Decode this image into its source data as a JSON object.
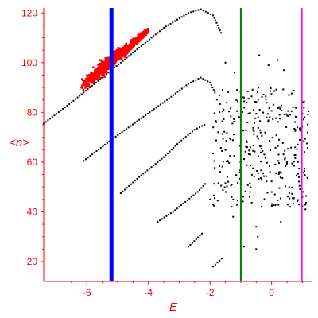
{
  "chart_data": {
    "type": "scatter",
    "title": "",
    "xlabel": "E",
    "ylabel": "<n>",
    "xlim": [
      -7.4,
      1.3
    ],
    "ylim": [
      12,
      122
    ],
    "x_ticks": [
      -6,
      -4,
      -2,
      0
    ],
    "y_ticks": [
      20,
      40,
      60,
      80,
      100,
      120
    ],
    "axis_color": "#ff0000",
    "grid": false,
    "highlight": {
      "color": "#ff0000",
      "trend": {
        "x0": -6.8,
        "y0": 84.0,
        "x1": -4.0,
        "y1": 113.0,
        "scatter": 1.4
      }
    },
    "ridges": [
      {
        "color": "#000000",
        "points": [
          [
            -7.4,
            75.5
          ],
          [
            -6.5,
            84.0
          ],
          [
            -5.5,
            94.0
          ],
          [
            -4.5,
            104.0
          ],
          [
            -3.5,
            114.0
          ],
          [
            -2.7,
            120.0
          ],
          [
            -2.3,
            121.5
          ],
          [
            -1.9,
            119.0
          ],
          [
            -1.6,
            111.0
          ]
        ]
      },
      {
        "color": "#000000",
        "points": [
          [
            -6.1,
            60.5
          ],
          [
            -5.2,
            69.0
          ],
          [
            -4.3,
            77.0
          ],
          [
            -3.4,
            85.0
          ],
          [
            -2.7,
            91.5
          ],
          [
            -2.3,
            94.0
          ],
          [
            -2.0,
            92.0
          ],
          [
            -1.8,
            87.0
          ]
        ]
      },
      {
        "color": "#000000",
        "points": [
          [
            -4.9,
            47.5
          ],
          [
            -4.3,
            54.0
          ],
          [
            -3.5,
            62.0
          ],
          [
            -3.0,
            68.0
          ],
          [
            -2.5,
            73.0
          ],
          [
            -2.1,
            75.5
          ]
        ]
      },
      {
        "color": "#000000",
        "points": [
          [
            -3.7,
            36.0
          ],
          [
            -3.2,
            40.0
          ],
          [
            -2.8,
            44.0
          ],
          [
            -2.4,
            48.0
          ],
          [
            -2.1,
            52.0
          ]
        ]
      },
      {
        "color": "#000000",
        "points": [
          [
            -2.7,
            26.0
          ],
          [
            -2.45,
            29.0
          ],
          [
            -2.2,
            32.0
          ]
        ]
      },
      {
        "color": "#000000",
        "points": [
          [
            -1.9,
            18.0
          ],
          [
            -1.55,
            22.0
          ]
        ]
      }
    ],
    "cloud": {
      "color": "#000000",
      "x_range": [
        -1.9,
        1.2
      ],
      "y_range": [
        42,
        90
      ],
      "extra_points": [
        [
          -1.3,
          42.0
        ],
        [
          -1.25,
          38.0
        ],
        [
          -2.0,
          45.0
        ],
        [
          -0.5,
          34.0
        ],
        [
          -0.45,
          30.0
        ],
        [
          -0.9,
          26.0
        ],
        [
          -0.7,
          48.0
        ],
        [
          -1.0,
          15.0
        ],
        [
          0.3,
          36.0
        ],
        [
          0.6,
          42.0
        ],
        [
          1.0,
          46.0
        ],
        [
          1.1,
          41.0
        ],
        [
          -0.4,
          103.0
        ],
        [
          -0.1,
          99.0
        ],
        [
          0.2,
          101.0
        ],
        [
          0.4,
          97.0
        ],
        [
          -1.2,
          96.0
        ],
        [
          -1.5,
          100.0
        ],
        [
          -0.5,
          25.0
        ],
        [
          -0.05,
          56.0
        ]
      ]
    },
    "vlines": [
      {
        "x": -5.2,
        "color": "#0000ff",
        "width": 5
      },
      {
        "x": -1.0,
        "color": "#008000",
        "width": 2
      },
      {
        "x": 0.98,
        "color": "#ff00ff",
        "width": 2
      }
    ]
  }
}
